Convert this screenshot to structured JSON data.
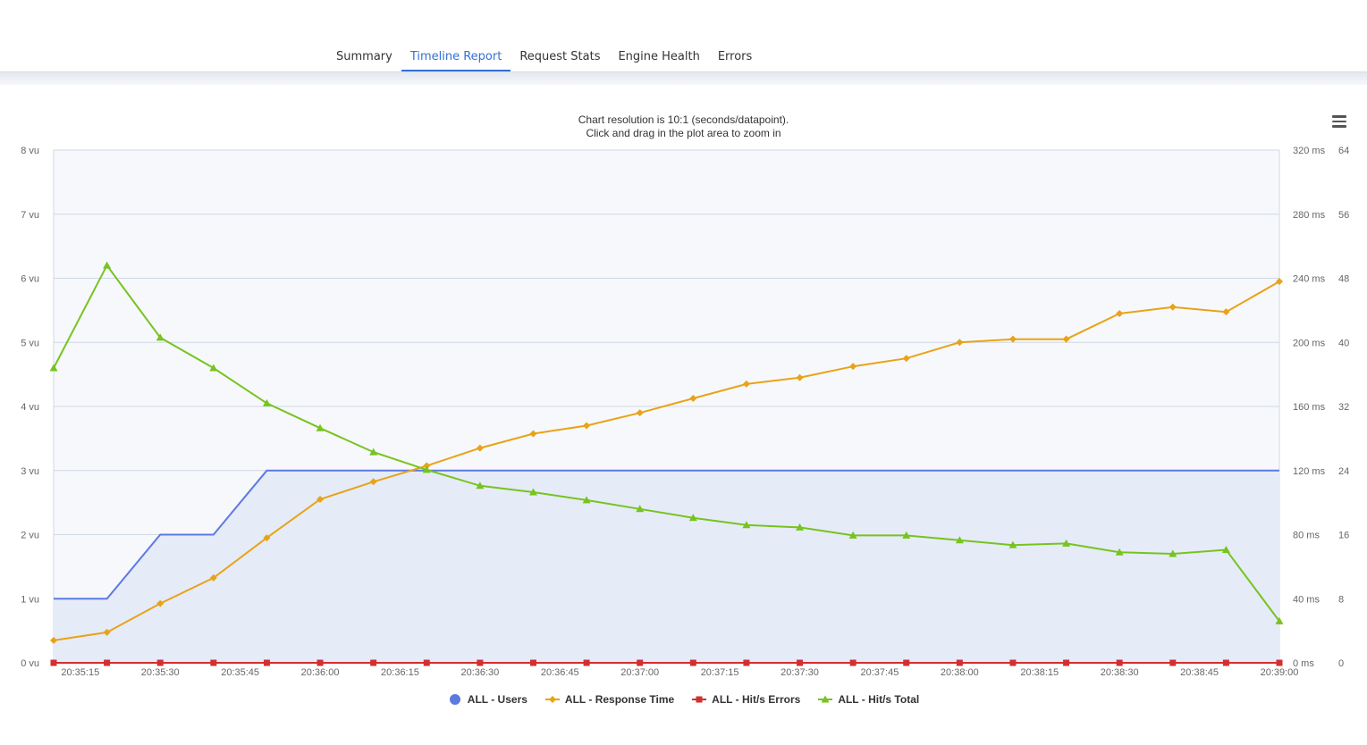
{
  "tabs": [
    {
      "label": "Summary",
      "active": false
    },
    {
      "label": "Timeline Report",
      "active": true
    },
    {
      "label": "Request Stats",
      "active": false
    },
    {
      "label": "Engine Health",
      "active": false
    },
    {
      "label": "Errors",
      "active": false
    }
  ],
  "chart_subtitle_line1": "Chart resolution is 10:1 (seconds/datapoint).",
  "chart_subtitle_line2": "Click and drag in the plot area to zoom in",
  "menu_icon": "hamburger-menu-icon",
  "colors": {
    "users": "#5b7be0",
    "users_fill": "#e6ebf8",
    "response_time": "#e8a317",
    "hits_errors": "#d32f2f",
    "hits_total": "#76c41e",
    "grid": "#cfd8e6",
    "plot_bg": "#f7f8fb"
  },
  "chart_data": {
    "type": "line",
    "x": [
      "20:35:10",
      "20:35:20",
      "20:35:30",
      "20:35:40",
      "20:35:50",
      "20:36:00",
      "20:36:10",
      "20:36:20",
      "20:36:30",
      "20:36:40",
      "20:36:50",
      "20:37:00",
      "20:37:10",
      "20:37:20",
      "20:37:30",
      "20:37:40",
      "20:37:50",
      "20:38:00",
      "20:38:10",
      "20:38:20",
      "20:38:30",
      "20:38:40",
      "20:38:50",
      "20:39:00"
    ],
    "x_tick_labels": [
      "20:35:15",
      "20:35:30",
      "20:35:45",
      "20:36:00",
      "20:36:15",
      "20:36:30",
      "20:36:45",
      "20:37:00",
      "20:37:15",
      "20:37:30",
      "20:37:45",
      "20:38:00",
      "20:38:15",
      "20:38:30",
      "20:38:45",
      "20:39:00"
    ],
    "x_tick_times": [
      "20:35:15",
      "20:35:30",
      "20:35:45",
      "20:36:00",
      "20:36:15",
      "20:36:30",
      "20:36:45",
      "20:37:00",
      "20:37:15",
      "20:37:30",
      "20:37:45",
      "20:38:00",
      "20:38:15",
      "20:38:30",
      "20:38:45",
      "20:39:00"
    ],
    "xlim": [
      "20:35:10",
      "20:39:00"
    ],
    "axes": [
      {
        "id": "users",
        "position": "left",
        "ylim": [
          0,
          8
        ],
        "ticks": [
          "0 vu",
          "1 vu",
          "2 vu",
          "3 vu",
          "4 vu",
          "5 vu",
          "6 vu",
          "7 vu",
          "8 vu"
        ]
      },
      {
        "id": "response",
        "position": "right",
        "ylim": [
          0,
          320
        ],
        "ticks": [
          "0 ms",
          "40 ms",
          "80 ms",
          "120 ms",
          "160 ms",
          "200 ms",
          "240 ms",
          "280 ms",
          "320 ms"
        ]
      },
      {
        "id": "hits",
        "position": "right",
        "ylim": [
          0,
          64
        ],
        "ticks": [
          "0",
          "8",
          "16",
          "24",
          "32",
          "40",
          "48",
          "56",
          "64"
        ]
      }
    ],
    "grid": true,
    "legend_position": "bottom-center",
    "series": [
      {
        "name": "ALL - Users",
        "axis": "users",
        "type": "area",
        "marker": "none",
        "values": [
          1,
          1,
          2,
          2,
          3,
          3,
          3,
          3,
          3,
          3,
          3,
          3,
          3,
          3,
          3,
          3,
          3,
          3,
          3,
          3,
          3,
          3,
          3,
          3
        ]
      },
      {
        "name": "ALL - Response Time",
        "axis": "response",
        "type": "line",
        "marker": "diamond",
        "values": [
          14,
          19,
          37,
          53,
          78,
          102,
          113,
          123,
          134,
          143,
          148,
          156,
          165,
          174,
          178,
          185,
          190,
          200,
          202,
          202,
          218,
          222,
          219,
          238
        ]
      },
      {
        "name": "ALL - Hit/s Errors",
        "axis": "hits",
        "type": "line",
        "marker": "square",
        "values": [
          0,
          0,
          0,
          0,
          0,
          0,
          0,
          0,
          0,
          0,
          0,
          0,
          0,
          0,
          0,
          0,
          0,
          0,
          0,
          0,
          0,
          0,
          0,
          0
        ]
      },
      {
        "name": "ALL - Hit/s Total",
        "axis": "hits",
        "type": "line",
        "marker": "triangle",
        "values": [
          36.8,
          49.6,
          40.6,
          36.8,
          32.4,
          29.3,
          26.3,
          24.1,
          22.1,
          21.3,
          20.3,
          19.2,
          18.1,
          17.2,
          16.9,
          15.9,
          15.9,
          15.3,
          14.7,
          14.9,
          13.8,
          13.6,
          14.1,
          5.2
        ]
      }
    ]
  }
}
